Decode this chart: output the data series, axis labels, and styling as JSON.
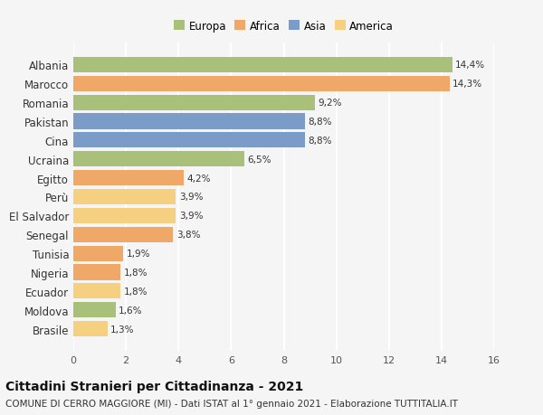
{
  "countries": [
    "Albania",
    "Marocco",
    "Romania",
    "Pakistan",
    "Cina",
    "Ucraina",
    "Egitto",
    "Perù",
    "El Salvador",
    "Senegal",
    "Tunisia",
    "Nigeria",
    "Ecuador",
    "Moldova",
    "Brasile"
  ],
  "values": [
    14.4,
    14.3,
    9.2,
    8.8,
    8.8,
    6.5,
    4.2,
    3.9,
    3.9,
    3.8,
    1.9,
    1.8,
    1.8,
    1.6,
    1.3
  ],
  "labels": [
    "14,4%",
    "14,3%",
    "9,2%",
    "8,8%",
    "8,8%",
    "6,5%",
    "4,2%",
    "3,9%",
    "3,9%",
    "3,8%",
    "1,9%",
    "1,8%",
    "1,8%",
    "1,6%",
    "1,3%"
  ],
  "continents": [
    "Europa",
    "Africa",
    "Europa",
    "Asia",
    "Asia",
    "Europa",
    "Africa",
    "America",
    "America",
    "Africa",
    "Africa",
    "Africa",
    "America",
    "Europa",
    "America"
  ],
  "continent_colors": {
    "Europa": "#a8c07a",
    "Africa": "#f0a868",
    "Asia": "#7b9bc8",
    "America": "#f5d080"
  },
  "legend_order": [
    "Europa",
    "Africa",
    "Asia",
    "America"
  ],
  "title": "Cittadini Stranieri per Cittadinanza - 2021",
  "subtitle": "COMUNE DI CERRO MAGGIORE (MI) - Dati ISTAT al 1° gennaio 2021 - Elaborazione TUTTITALIA.IT",
  "xlim": [
    0,
    16
  ],
  "xticks": [
    0,
    2,
    4,
    6,
    8,
    10,
    12,
    14,
    16
  ],
  "background_color": "#f5f5f5",
  "grid_color": "#ffffff",
  "title_fontsize": 10,
  "subtitle_fontsize": 7.5,
  "bar_height": 0.82
}
